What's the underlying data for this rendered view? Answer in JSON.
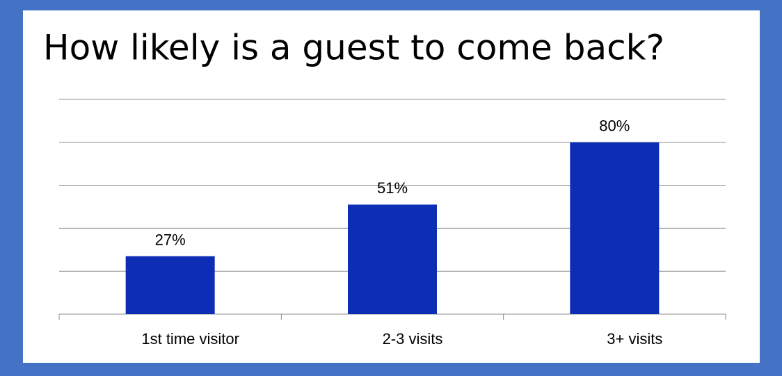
{
  "chart_data": {
    "type": "bar",
    "title": "How likely is a guest to come back?",
    "categories": [
      "1st time visitor",
      "2-3 visits",
      "3+ visits"
    ],
    "values": [
      27,
      51,
      80
    ],
    "value_labels": [
      "27%",
      "51%",
      "80%"
    ],
    "color": "#0d2db5",
    "ylim": [
      0,
      100
    ],
    "yticks": [
      0,
      20,
      40,
      60,
      80,
      100
    ],
    "grid": true
  }
}
